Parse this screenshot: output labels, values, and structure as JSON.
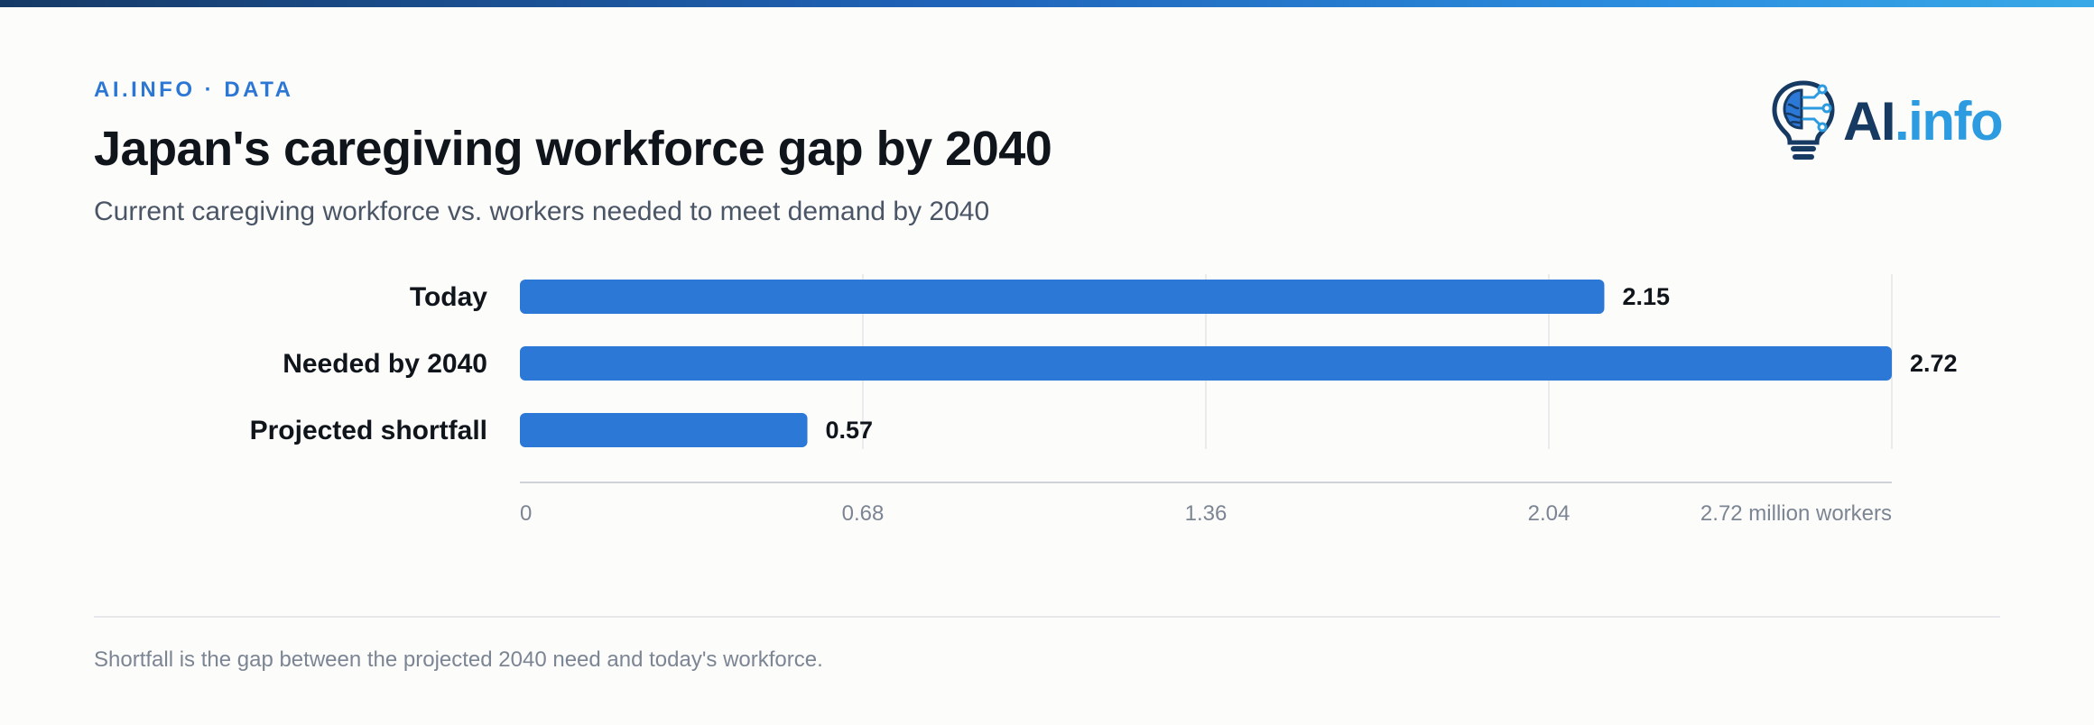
{
  "header": {
    "eyebrow": "AI.INFO · DATA",
    "title": "Japan's caregiving workforce gap by 2040",
    "subtitle": "Current caregiving workforce vs. workers needed to meet demand by 2040"
  },
  "logo": {
    "text_primary": "AI",
    "text_secondary": ".info",
    "icon": "lightbulb-brain-icon",
    "colors": {
      "primary": "#173a63",
      "secondary": "#2c9be0"
    }
  },
  "chart_data": {
    "type": "bar",
    "orientation": "horizontal",
    "categories": [
      "Today",
      "Needed by 2040",
      "Projected shortfall"
    ],
    "values": [
      2.15,
      2.72,
      0.57
    ],
    "data_labels": [
      "2.15",
      "2.72",
      "0.57"
    ],
    "xlim": [
      0,
      2.72
    ],
    "ticks": [
      0,
      0.68,
      1.36,
      2.04,
      2.72
    ],
    "tick_labels": [
      "0",
      "0.68",
      "1.36",
      "2.04",
      "2.72 million workers"
    ],
    "grid": true,
    "bar_color": "#2c78d6"
  },
  "footer": {
    "note": "Shortfall is the gap between the projected 2040 need and today's workforce."
  }
}
